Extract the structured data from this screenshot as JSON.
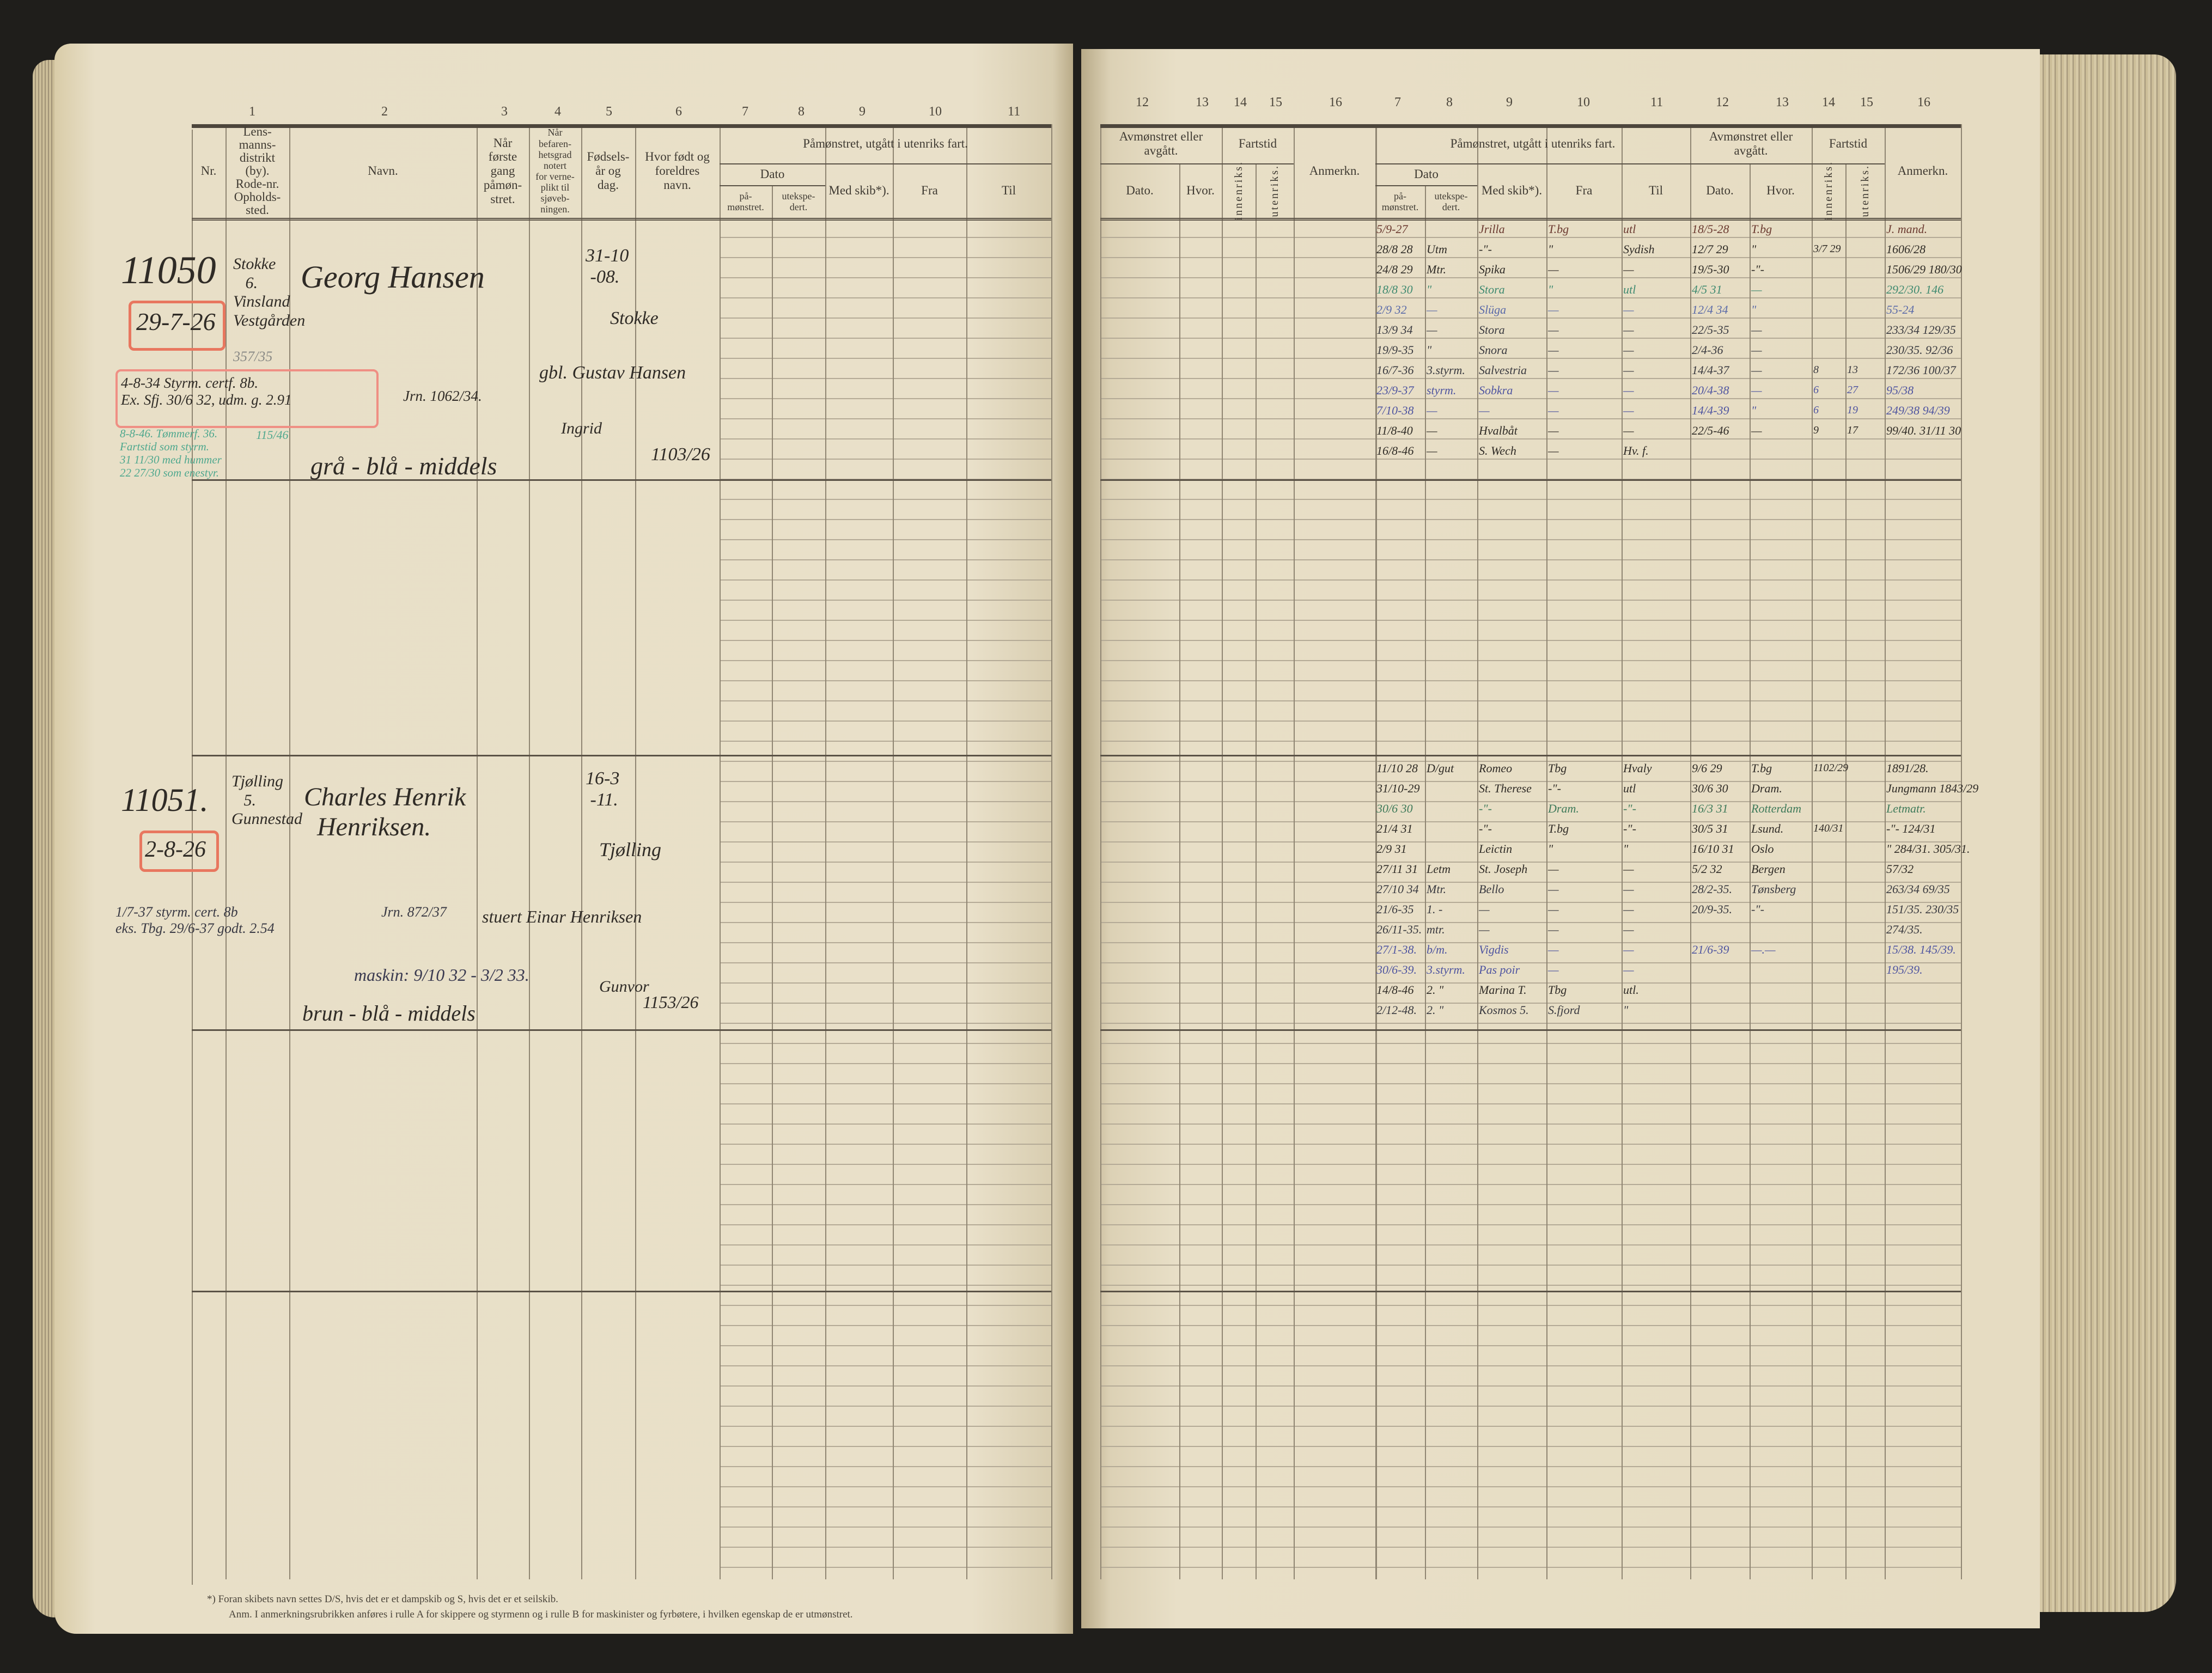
{
  "left_page": {
    "column_numbers": [
      "1",
      "2",
      "3",
      "4",
      "5",
      "6",
      "7",
      "8",
      "9",
      "10",
      "11"
    ],
    "header": {
      "nr": "Nr.",
      "district": "Lens-\nmanns-\ndistrikt\n(by).\nRode-nr.\nOpholds-\nsted.",
      "name": "Navn.",
      "first_mustered": "Når\nførste\ngang\npåmøn-\nstret.",
      "conscription": "Når\nbefaren-\nhetsgrad\nnotert\nfor verne-\nplikt til\nsjøveb-\nningen.",
      "birth": "Fødsels-\når og\ndag.",
      "birthplace": "Hvor født og\nforeldres\nnavn.",
      "group": "Påmønstret, utgått i utenriks fart.",
      "dato": "Dato",
      "pa": "på-\nmønstret.",
      "utekspedert": "utekspe-\ndert.",
      "med_skib": "Med skib*).",
      "fra": "Fra",
      "til": "Til"
    },
    "entries": [
      {
        "nr": "11050",
        "district": "Stokke\n   6.\nVinsland\nVestgården",
        "district_ref": "357/35",
        "enrolled": "29-7-26",
        "name": "Georg Hansen",
        "birth": "31-10\n -08.",
        "birthplace": "Stokke",
        "father": "gbl. Gustav Hansen",
        "mother": "Ingrid",
        "cert_note": "4-8-34 Styrm. certf. 8b.\nEx. Sfj. 30/6 32, udm. g. 2.91",
        "journal": "Jrn. 1062/34.",
        "green_note": "8-8-46. Tømmerf. 36.\nFartstid som styrm.\n31 11/30 med hummer\n22 27/30 som enestyr.",
        "green_ref": "115/46",
        "description": "grå - blå - middels",
        "ref": "1103/26"
      },
      {
        "nr": "11051.",
        "district": "Tjølling\n   5.\nGunnestad",
        "enrolled": "2-8-26",
        "name": "Charles Henrik\n  Henriksen.",
        "birth": "16-3\n -11.",
        "birthplace": "Tjølling",
        "father": "stuert Einar Henriksen",
        "mother": "Gunvor",
        "cert_note": "1/7-37 styrm. cert. 8b\neks. Tbg. 29/6-37 godt. 2.54",
        "journal": "Jrn. 872/37",
        "machine_note": "maskin: 9/10 32 - 3/2 33.",
        "description": "brun - blå - middels",
        "ref": "1153/26"
      }
    ]
  },
  "right_page": {
    "column_numbers": [
      "12",
      "13",
      "14",
      "15",
      "16",
      "7",
      "8",
      "9",
      "10",
      "11",
      "12",
      "13",
      "14",
      "15",
      "16"
    ],
    "header": {
      "avm": "Avmønstret eller\navgått.",
      "fartstid": "Fartstid",
      "dato": "Dato.",
      "hvor": "Hvor.",
      "innenriks": "innenriks.",
      "utenriks": "utenriks.",
      "anmerkn": "Anmerkn.",
      "group": "Påmønstret, utgått i utenriks fart.",
      "dato2": "Dato",
      "pa": "på-\nmønstret.",
      "utekspedert": "utekspe-\ndert.",
      "med_skib": "Med skib*).",
      "fra": "Fra",
      "til": "Til"
    },
    "blocks": [
      {
        "rows": [
          {
            "cells": [
              "5/9-27",
              "",
              "Jrilla",
              "T.bg",
              "utl",
              "18/5-28",
              "T.bg",
              "",
              "",
              "J. mand."
            ],
            "ink": "#6b3a30"
          },
          {
            "cells": [
              "28/8 28",
              "Utm",
              "-\"-",
              "\"",
              "Sydish",
              "12/7 29",
              "\"",
              "3/7 29",
              "",
              "1606/28"
            ],
            "ink": "#2f2b26"
          },
          {
            "cells": [
              "24/8 29",
              "Mtr.",
              "Spika",
              "—",
              "—",
              "19/5-30",
              "-\"-",
              "",
              "",
              "1506/29  180/30"
            ],
            "ink": "#2f2b26"
          },
          {
            "cells": [
              "18/8 30",
              "\"",
              "Stora",
              "\"",
              "utl",
              "4/5 31",
              "—",
              "",
              "",
              "292/30. 146"
            ],
            "ink": "#3f8a70"
          },
          {
            "cells": [
              "2/9 32",
              "—",
              "Slüga",
              "—",
              "—",
              "12/4 34",
              "\"",
              "",
              "",
              "55-24"
            ],
            "ink": "#5a6aa8"
          },
          {
            "cells": [
              "13/9 34",
              "—",
              "Stora",
              "—",
              "—",
              "22/5-35",
              "—",
              "",
              "",
              "233/34 129/35"
            ],
            "ink": "#3a3a40"
          },
          {
            "cells": [
              "19/9-35",
              "\"",
              "Snora",
              "—",
              "—",
              "2/4-36",
              "—",
              "",
              "",
              "230/35. 92/36"
            ],
            "ink": "#3a3a40"
          },
          {
            "cells": [
              "16/7-36",
              "3.styrm.",
              "Salvestria",
              "—",
              "—",
              "14/4-37",
              "—",
              "8",
              "13",
              "172/36 100/37"
            ],
            "ink": "#3a3a40"
          },
          {
            "cells": [
              "23/9-37",
              "styrm.",
              "Sobkra",
              "—",
              "—",
              "20/4-38",
              "—",
              "6",
              "27",
              "95/38"
            ],
            "ink": "#4f55a0"
          },
          {
            "cells": [
              "7/10-38",
              "—",
              "—",
              "—",
              "—",
              "14/4-39",
              "\"",
              "6",
              "19",
              "249/38 94/39"
            ],
            "ink": "#4f55a0"
          },
          {
            "cells": [
              "11/8-40",
              "—",
              "Hvalbåt",
              "—",
              "—",
              "22/5-46",
              "—",
              "9",
              "17",
              "99/40. 31/11 30"
            ],
            "ink": "#2f2b26"
          },
          {
            "cells": [
              "16/8-46",
              "—",
              "S. Wech",
              "—",
              "Hv. f.",
              "",
              "",
              "",
              "",
              ""
            ],
            "ink": "#2f2b26"
          }
        ]
      },
      {
        "rows": [
          {
            "cells": [
              "11/10 28",
              "D/gut",
              "Romeo",
              "Tbg",
              "Hvaly",
              "9/6 29",
              "T.bg",
              "1102/29",
              "",
              "1891/28."
            ],
            "ink": "#2f2b26"
          },
          {
            "cells": [
              "31/10-29",
              "",
              "St. Therese",
              "-\"-",
              "utl",
              "30/6 30",
              "Dram.",
              "",
              "",
              "Jungmann 1843/29"
            ],
            "ink": "#2f2b26"
          },
          {
            "cells": [
              "30/6 30",
              "",
              "-\"-",
              "Dram.",
              "-\"-",
              "16/3 31",
              "Rotterdam",
              "",
              "",
              "Letmatr."
            ],
            "ink": "#3f7a5a"
          },
          {
            "cells": [
              "21/4 31",
              "",
              "-\"-",
              "T.bg",
              "-\"-",
              "30/5 31",
              "Lsund.",
              "140/31",
              "",
              "-\"-  124/31"
            ],
            "ink": "#2f2b26"
          },
          {
            "cells": [
              "2/9 31",
              "",
              "Leictin",
              "\"",
              "\"",
              "16/10 31",
              "Oslo",
              "",
              "",
              "\" 284/31. 305/31."
            ],
            "ink": "#2f2b26"
          },
          {
            "cells": [
              "27/11 31",
              "Letm",
              "St. Joseph",
              "—",
              "—",
              "5/2 32",
              "Bergen",
              "",
              "",
              "57/32"
            ],
            "ink": "#2f2b26"
          },
          {
            "cells": [
              "27/10 34",
              "Mtr.",
              "Bello",
              "—",
              "—",
              "28/2-35.",
              "Tønsberg",
              "",
              "",
              "263/34  69/35"
            ],
            "ink": "#3a3a40"
          },
          {
            "cells": [
              "21/6-35",
              "1. -",
              "—",
              "—",
              "—",
              "20/9-35.",
              "-\"-",
              "",
              "",
              "151/35.  230/35"
            ],
            "ink": "#3a3a40"
          },
          {
            "cells": [
              "26/11-35.",
              "mtr.",
              "—",
              "—",
              "—",
              "",
              "",
              "",
              "",
              "274/35."
            ],
            "ink": "#3a3a40"
          },
          {
            "cells": [
              "27/1-38.",
              "b/m.",
              "Vigdis",
              "—",
              "—",
              "21/6-39",
              "—.—",
              "",
              "",
              "15/38.  145/39."
            ],
            "ink": "#4f55a0"
          },
          {
            "cells": [
              "30/6-39.",
              "3.styrm.",
              "Pas poir",
              "—",
              "—",
              "",
              "",
              "",
              "",
              "195/39."
            ],
            "ink": "#4f55a0"
          },
          {
            "cells": [
              "14/8-46",
              "2. \"",
              "Marina T.",
              "Tbg",
              "utl.",
              "",
              "",
              "",
              "",
              ""
            ],
            "ink": "#2f2b26"
          },
          {
            "cells": [
              "2/12-48.",
              "2. \"",
              "Kosmos 5.",
              "S.fjord",
              "\"",
              "",
              "",
              "",
              "",
              ""
            ],
            "ink": "#3a3a40"
          }
        ]
      }
    ]
  },
  "footnotes": [
    "*) Foran skibets navn settes D/S, hvis det er et dampskib og S, hvis det er et seilskib.",
    "Anm. I anmerkningsrubrikken anføres i rulle A for skippere og styrmenn og i rulle B for maskinister og fyrbøtere, i hvilken egenskap de er utmønstret."
  ],
  "colors": {
    "ink": "#2f2b26",
    "red_pencil": "#e8775f",
    "green_ink": "#4fa88e",
    "blue_ink": "#5a6aa8",
    "paper": "#e7ddc4"
  }
}
